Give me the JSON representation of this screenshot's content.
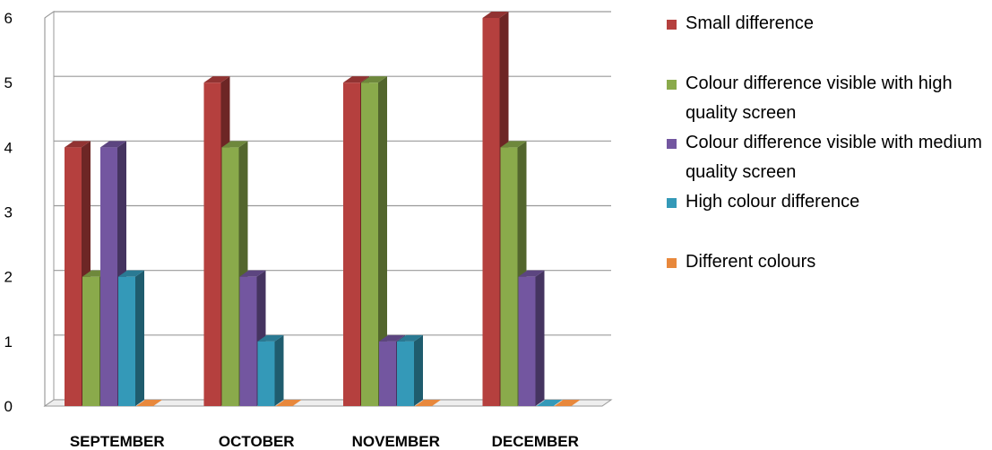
{
  "chart_data": {
    "type": "bar",
    "categories": [
      "SEPTEMBER",
      "OCTOBER",
      "NOVEMBER",
      "DECEMBER"
    ],
    "series": [
      {
        "name": "Small difference",
        "values": [
          4,
          5,
          5,
          6
        ],
        "color": "#B5403E"
      },
      {
        "name": "Colour difference visible with high quality screen",
        "values": [
          2,
          4,
          5,
          4
        ],
        "color": "#8AAA4B"
      },
      {
        "name": "Colour difference visible with medium quality screen",
        "values": [
          4,
          2,
          1,
          2
        ],
        "color": "#7356A0"
      },
      {
        "name": "High colour difference",
        "values": [
          2,
          1,
          1,
          0
        ],
        "color": "#3499B8"
      },
      {
        "name": "Different colours",
        "values": [
          0,
          0,
          0,
          0
        ],
        "color": "#E8883C"
      }
    ],
    "ylim": [
      0,
      6
    ],
    "yticks": [
      0,
      1,
      2,
      3,
      4,
      5,
      6
    ],
    "grid": true,
    "legend": "right"
  }
}
